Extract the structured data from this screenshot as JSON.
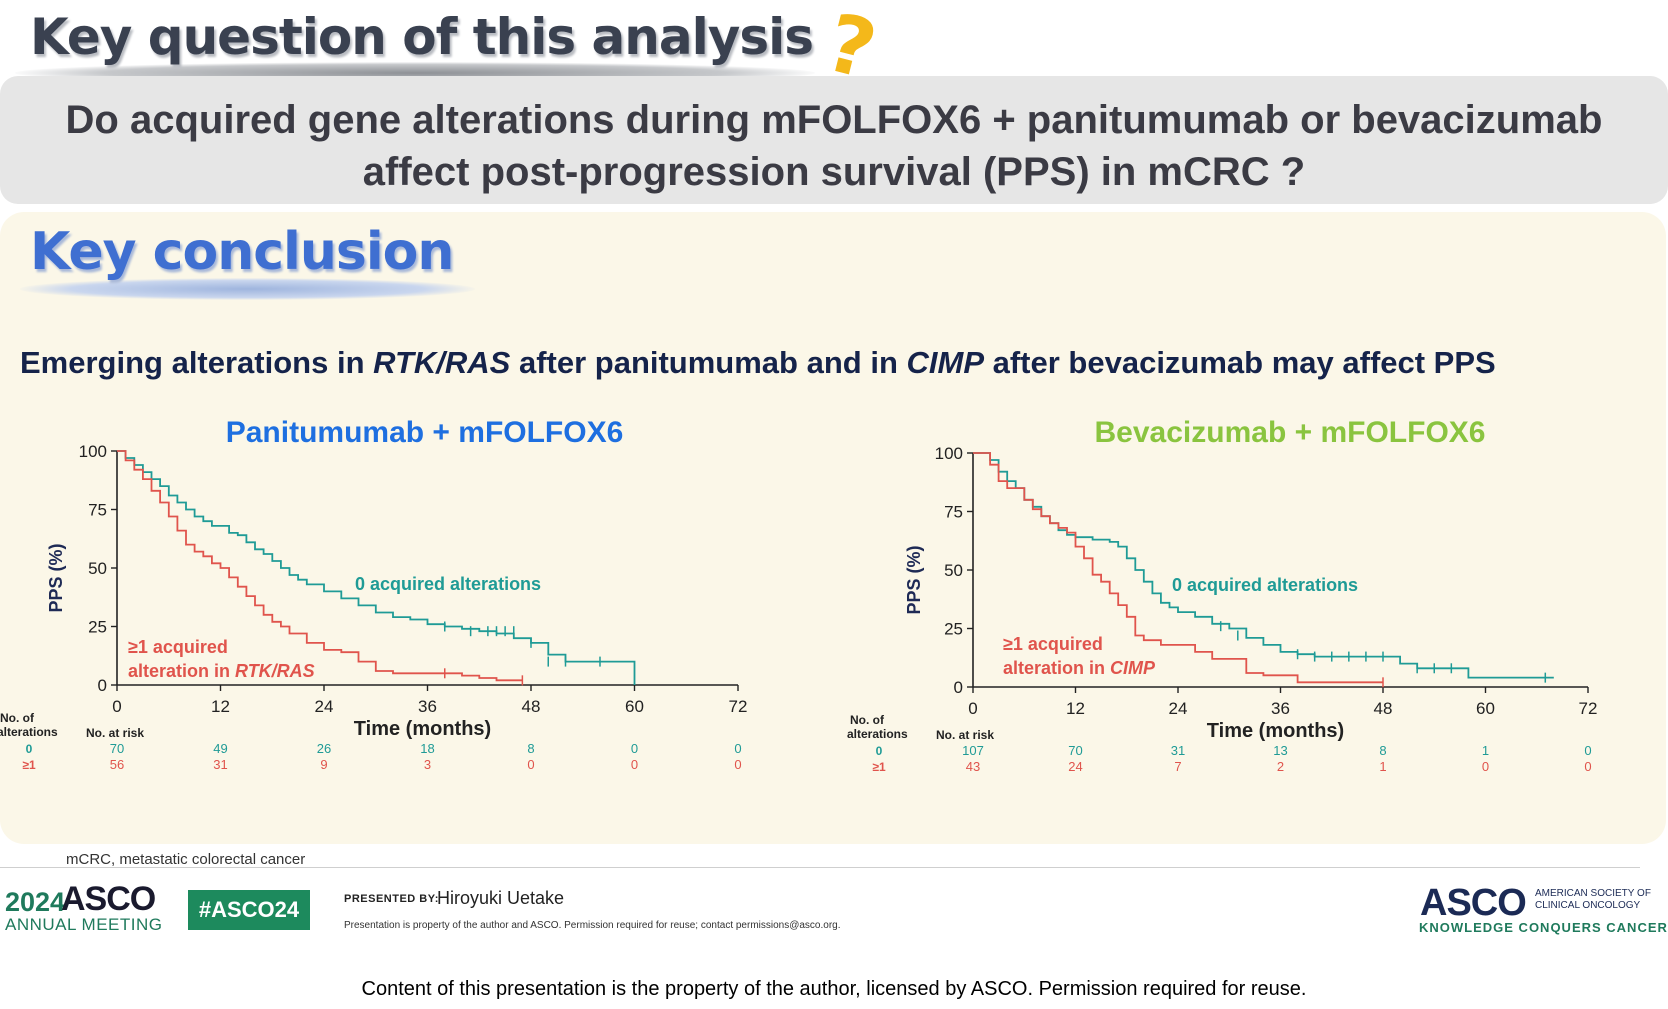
{
  "header": {
    "key_question": "Key question of this analysis",
    "question_mark": "?",
    "question_line1": "Do acquired gene alterations during mFOLFOX6 + panitumumab or bevacizumab",
    "question_line2": "affect post-progression survival (PPS) in mCRC ?"
  },
  "conclusion": {
    "title": "Key conclusion",
    "headline_parts": [
      "Emerging alterations in ",
      "RTK/RAS",
      " after panitumumab and in ",
      "CIMP",
      " after bevacizumab may affect PPS"
    ]
  },
  "colors": {
    "teal": "#1f9b96",
    "red": "#e0544c",
    "pan_title": "#1e6fe0",
    "bev_title": "#8ac43f"
  },
  "chart_data": [
    {
      "type": "line",
      "title": "Panitumumab + mFOLFOX6",
      "xlabel": "Time (months)",
      "ylabel": "PPS (%)",
      "xlim": [
        0,
        72
      ],
      "ylim": [
        0,
        100
      ],
      "xticks": [
        0,
        12,
        24,
        36,
        48,
        60,
        72
      ],
      "yticks": [
        0,
        25,
        50,
        75,
        100
      ],
      "grid": false,
      "series": [
        {
          "name": "0 acquired  alterations",
          "color": "#1f9b96",
          "x": [
            0,
            1,
            2,
            3,
            4,
            5,
            6,
            7,
            8,
            9,
            10,
            11,
            12,
            13,
            14,
            15,
            16,
            17,
            18,
            19,
            20,
            21,
            22,
            24,
            26,
            28,
            30,
            32,
            34,
            36,
            38,
            40,
            42,
            44,
            46,
            48,
            50,
            52,
            54,
            56,
            58,
            60
          ],
          "y": [
            100,
            97,
            94,
            91,
            88,
            85,
            81,
            78,
            75,
            72,
            70,
            68,
            68,
            65,
            64,
            61,
            58,
            56,
            53,
            50,
            47,
            45,
            43,
            40,
            37,
            34,
            31,
            29,
            28,
            26,
            25,
            24,
            23,
            22,
            20,
            18,
            13,
            10,
            10,
            10,
            10,
            0
          ],
          "censor_x": [
            38,
            41,
            43,
            44,
            45,
            46,
            48,
            50,
            52,
            56
          ],
          "censor_y": [
            25,
            23,
            23,
            23,
            23,
            23,
            18,
            10,
            10,
            10
          ]
        },
        {
          "name": "≥1 acquired alteration  in RTK/RAS",
          "color": "#e0544c",
          "x": [
            0,
            1,
            2,
            3,
            4,
            5,
            6,
            7,
            8,
            9,
            10,
            11,
            12,
            13,
            14,
            15,
            16,
            17,
            18,
            19,
            20,
            22,
            24,
            26,
            28,
            30,
            32,
            34,
            36,
            38,
            40,
            42,
            44,
            46,
            47
          ],
          "y": [
            100,
            96,
            92,
            88,
            83,
            78,
            72,
            66,
            60,
            57,
            55,
            52,
            50,
            46,
            42,
            38,
            34,
            30,
            27,
            25,
            22,
            18,
            15,
            14,
            10,
            6,
            5,
            5,
            5,
            5,
            4,
            3,
            2,
            2,
            2
          ],
          "censor_x": [
            38,
            47
          ],
          "censor_y": [
            5,
            2
          ]
        }
      ],
      "labels": {
        "teal": "0 acquired  alterations",
        "red_line1": "≥1 acquired",
        "red_line2_prefix": "alteration  in ",
        "red_line2_italic": "RTK/RAS"
      },
      "risk_table": {
        "header": "No. of alterations",
        "header_line1": "No. of",
        "header_line2": "alterations",
        "no_at_risk": "No. at risk",
        "row_labels": [
          "0",
          "≥1"
        ],
        "times": [
          0,
          12,
          24,
          36,
          48,
          60,
          72
        ],
        "row0": [
          "70",
          "49",
          "26",
          "18",
          "8",
          "0",
          "0"
        ],
        "row1": [
          "56",
          "31",
          "9",
          "3",
          "0",
          "0",
          "0"
        ]
      }
    },
    {
      "type": "line",
      "title": "Bevacizumab + mFOLFOX6",
      "xlabel": "Time (months)",
      "ylabel": "PPS (%)",
      "xlim": [
        0,
        72
      ],
      "ylim": [
        0,
        100
      ],
      "xticks": [
        0,
        12,
        24,
        36,
        48,
        60,
        72
      ],
      "yticks": [
        0,
        25,
        50,
        75,
        100
      ],
      "grid": false,
      "series": [
        {
          "name": "0 acquired  alterations",
          "color": "#1f9b96",
          "x": [
            0,
            1,
            2,
            3,
            4,
            5,
            6,
            7,
            8,
            9,
            10,
            11,
            12,
            13,
            14,
            15,
            16,
            17,
            18,
            19,
            20,
            21,
            22,
            23,
            24,
            26,
            28,
            30,
            32,
            34,
            36,
            38,
            40,
            44,
            48,
            50,
            52,
            56,
            58,
            68
          ],
          "y": [
            100,
            100,
            97,
            92,
            88,
            85,
            80,
            77,
            73,
            70,
            67,
            65,
            64,
            64,
            63,
            63,
            62,
            60,
            55,
            50,
            45,
            40,
            36,
            34,
            32,
            30,
            27,
            25,
            21,
            18,
            15,
            14,
            13,
            13,
            13,
            10,
            8,
            8,
            4,
            4
          ],
          "censor_x": [
            29,
            31,
            38,
            40,
            42,
            44,
            46,
            48,
            52,
            54,
            56,
            67
          ],
          "censor_y": [
            26,
            22,
            14,
            13,
            13,
            13,
            13,
            13,
            8,
            8,
            8,
            4
          ]
        },
        {
          "name": "≥1 acquired alteration  in CIMP",
          "color": "#e0544c",
          "x": [
            0,
            1,
            2,
            3,
            4,
            5,
            6,
            7,
            8,
            9,
            10,
            11,
            12,
            13,
            14,
            15,
            16,
            17,
            18,
            19,
            20,
            21,
            22,
            24,
            26,
            28,
            30,
            32,
            34,
            36,
            38,
            40,
            48
          ],
          "y": [
            100,
            100,
            95,
            88,
            85,
            85,
            80,
            76,
            73,
            70,
            68,
            66,
            60,
            55,
            48,
            45,
            40,
            35,
            30,
            22,
            20,
            20,
            18,
            18,
            15,
            12,
            12,
            6,
            5,
            5,
            2,
            2,
            2
          ],
          "censor_x": [
            48
          ],
          "censor_y": [
            2
          ]
        }
      ],
      "labels": {
        "teal": "0 acquired  alterations",
        "red_line1": "≥1 acquired",
        "red_line2_prefix": "alteration  in ",
        "red_line2_italic": "CIMP"
      },
      "risk_table": {
        "header": "No. of alterations",
        "header_line1": "No. of",
        "header_line2": "alterations",
        "no_at_risk": "No. at risk",
        "row_labels": [
          "0",
          "≥1"
        ],
        "times": [
          0,
          12,
          24,
          36,
          48,
          60,
          72
        ],
        "row0": [
          "107",
          "70",
          "31",
          "13",
          "8",
          "1",
          "0"
        ],
        "row1": [
          "43",
          "24",
          "7",
          "2",
          "1",
          "0",
          "0"
        ]
      }
    }
  ],
  "footer": {
    "abbreviation": "mCRC, metastatic colorectal cancer",
    "year": "2024",
    "asco": "ASCO",
    "annual_meeting": "ANNUAL MEETING",
    "hashtag": "#ASCO24",
    "presented_by": "PRESENTED BY:",
    "presenter": "Hiroyuki Uetake",
    "property_note": "Presentation is property of the author and ASCO. Permission required for reuse; contact permissions@asco.org.",
    "asco_right": "ASCO",
    "society_line1": "AMERICAN SOCIETY OF",
    "society_line2": "CLINICAL ONCOLOGY",
    "tagline": "KNOWLEDGE CONQUERS CANCER",
    "copyright": "Content of this presentation is the property of the author, licensed by ASCO. Permission required for reuse."
  }
}
